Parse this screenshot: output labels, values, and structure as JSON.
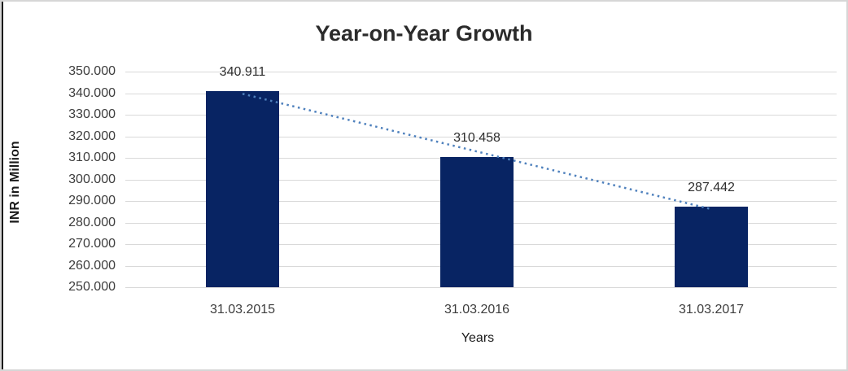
{
  "chart_data": {
    "type": "bar",
    "title": "Year-on-Year Growth",
    "xlabel": "Years",
    "ylabel": "INR in Million",
    "categories": [
      "31.03.2015",
      "31.03.2016",
      "31.03.2017"
    ],
    "values": [
      340.911,
      310.458,
      287.442
    ],
    "data_labels": [
      "340.911",
      "310.458",
      "287.442"
    ],
    "ylim": [
      250,
      350
    ],
    "ytick_step": 10,
    "ytick_labels": [
      "350.000",
      "340.000",
      "330.000",
      "320.000",
      "310.000",
      "300.000",
      "290.000",
      "280.000",
      "270.000",
      "260.000",
      "250.000"
    ],
    "grid": true,
    "legend": "none",
    "bar_color": "#082463",
    "gridline_color": "#D9D9D9",
    "trendline": {
      "type": "linear",
      "style": "dotted",
      "color": "#4F81BD",
      "fit_values": [
        339.7,
        312.9,
        286.2
      ]
    }
  }
}
